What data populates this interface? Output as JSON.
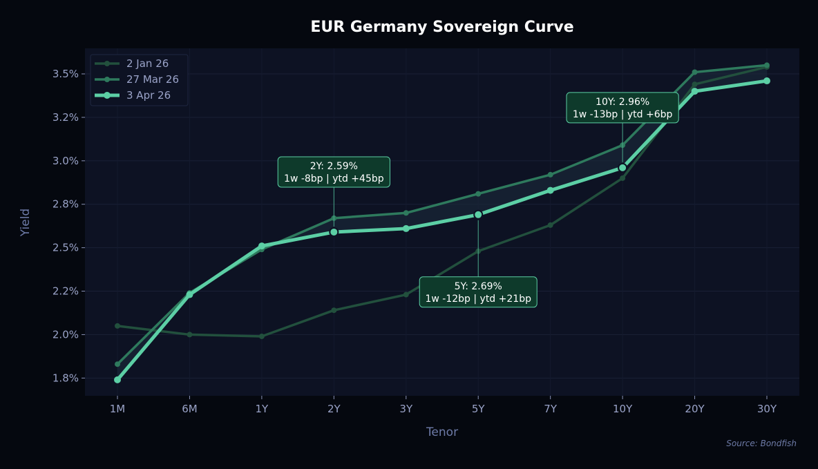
{
  "chart_data": {
    "type": "line",
    "title": "EUR Germany Sovereign Curve",
    "xlabel": "Tenor",
    "ylabel": "Yield",
    "categories": [
      "1M",
      "6M",
      "1Y",
      "2Y",
      "3Y",
      "5Y",
      "7Y",
      "10Y",
      "20Y",
      "30Y"
    ],
    "ylim": [
      1.648,
      3.647
    ],
    "yticks": [
      1.75,
      2.0,
      2.25,
      2.5,
      2.75,
      3.0,
      3.25,
      3.5
    ],
    "ytick_labels": [
      "1.8%",
      "2.0%",
      "2.2%",
      "2.5%",
      "2.8%",
      "3.0%",
      "3.2%",
      "3.5%"
    ],
    "grid": true,
    "legend_position": "top-left",
    "series": [
      {
        "name": "2 Jan 26",
        "color": "#22503d",
        "values": [
          2.05,
          2.0,
          1.99,
          2.14,
          2.23,
          2.48,
          2.63,
          2.9,
          3.44,
          3.54
        ]
      },
      {
        "name": "27 Mar 26",
        "color": "#2e7a5d",
        "values": [
          1.83,
          2.24,
          2.49,
          2.67,
          2.7,
          2.81,
          2.92,
          3.09,
          3.51,
          3.55
        ]
      },
      {
        "name": "3 Apr 26",
        "color": "#5ccfa5",
        "values": [
          1.74,
          2.23,
          2.51,
          2.59,
          2.61,
          2.69,
          2.83,
          2.96,
          3.4,
          3.46
        ]
      }
    ],
    "annotations": [
      {
        "tenor": "2Y",
        "line1": "2Y: 2.59%",
        "line2": "1w -8bp | ytd +45bp",
        "placement": "above"
      },
      {
        "tenor": "5Y",
        "line1": "5Y: 2.69%",
        "line2": "1w -12bp | ytd +21bp",
        "placement": "below"
      },
      {
        "tenor": "10Y",
        "line1": "10Y: 2.96%",
        "line2": "1w -13bp | ytd +6bp",
        "placement": "above"
      }
    ],
    "source": "Source: Bondfish"
  }
}
